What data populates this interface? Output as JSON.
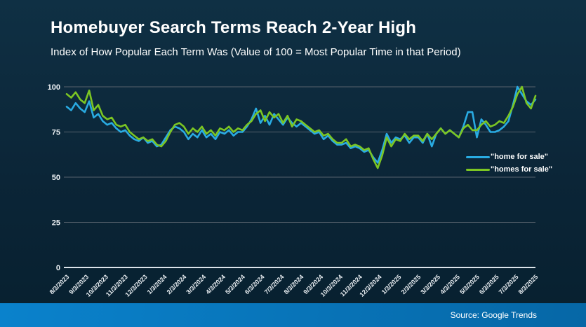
{
  "header": {
    "title": "Homebuyer Search Terms Reach 2-Year High",
    "subtitle": "Index of How Popular Each Term Was (Value of 100 = Most Popular Time in that Period)"
  },
  "footer": {
    "source": "Source: Google Trends"
  },
  "colors": {
    "background_top": "#0f3044",
    "background_bottom": "#07202f",
    "footer_bar_left": "#0a82cc",
    "footer_bar_right": "#0667a6",
    "gridline": "#56616c",
    "axis_line": "#dce4ea",
    "text": "#ffffff",
    "series_blue": "#29ABE2",
    "series_green": "#7CC623"
  },
  "chart_data": {
    "type": "line",
    "title": "Homebuyer Search Terms Reach 2-Year High",
    "subtitle": "Index of How Popular Each Term Was (Value of 100 = Most Popular Time in that Period)",
    "source": "Source: Google Trends",
    "x_frequency": "weekly",
    "x_labels": [
      "8/3/2023",
      "9/3/2023",
      "10/3/2023",
      "11/3/2023",
      "12/3/2023",
      "1/3/2024",
      "2/3/2024",
      "3/3/2024",
      "4/3/2024",
      "5/3/2024",
      "6/3/2024",
      "7/3/2024",
      "8/3/2024",
      "9/3/2024",
      "10/3/2024",
      "11/3/2024",
      "12/3/2024",
      "1/3/2025",
      "2/3/2025",
      "3/3/2025",
      "4/3/2025",
      "5/3/2025",
      "6/3/2025",
      "7/3/2025",
      "8/3/2025"
    ],
    "y_ticks": [
      0,
      25,
      50,
      75,
      100
    ],
    "ylim": [
      0,
      100
    ],
    "grid": true,
    "legend_position": "right-center",
    "series": [
      {
        "name": "\"home for sale\"",
        "color": "#29ABE2",
        "values": [
          89,
          87,
          91,
          88,
          86,
          92,
          83,
          85,
          81,
          79,
          80,
          77,
          75,
          76,
          73,
          71,
          70,
          72,
          69,
          70,
          67,
          68,
          72,
          76,
          78,
          77,
          75,
          71,
          74,
          72,
          76,
          72,
          74,
          71,
          75,
          74,
          76,
          73,
          75,
          75,
          78,
          82,
          88,
          80,
          84,
          79,
          85,
          82,
          79,
          83,
          80,
          78,
          80,
          78,
          76,
          74,
          75,
          71,
          73,
          70,
          68,
          68,
          69,
          66,
          67,
          66,
          64,
          65,
          61,
          58,
          65,
          74,
          69,
          72,
          71,
          73,
          69,
          72,
          72,
          69,
          74,
          67,
          74,
          77,
          74,
          76,
          74,
          72,
          78,
          86,
          86,
          72,
          82,
          79,
          75,
          75,
          76,
          78,
          81,
          90,
          100,
          96,
          92,
          90,
          93
        ]
      },
      {
        "name": "\"homes for sale\"",
        "color": "#7CC623",
        "values": [
          96,
          94,
          97,
          93,
          91,
          98,
          87,
          90,
          84,
          82,
          83,
          79,
          78,
          79,
          75,
          73,
          71,
          72,
          70,
          71,
          68,
          67,
          70,
          75,
          79,
          80,
          78,
          74,
          77,
          75,
          78,
          74,
          76,
          73,
          77,
          76,
          78,
          75,
          77,
          76,
          79,
          81,
          85,
          87,
          81,
          86,
          83,
          85,
          80,
          84,
          78,
          82,
          81,
          79,
          77,
          75,
          76,
          73,
          74,
          71,
          69,
          69,
          71,
          67,
          68,
          67,
          65,
          66,
          60,
          55,
          62,
          72,
          67,
          71,
          70,
          74,
          71,
          73,
          73,
          70,
          74,
          71,
          74,
          77,
          74,
          76,
          74,
          72,
          77,
          79,
          76,
          76,
          79,
          81,
          78,
          79,
          81,
          80,
          84,
          89,
          96,
          100,
          91,
          88,
          95
        ]
      }
    ]
  }
}
